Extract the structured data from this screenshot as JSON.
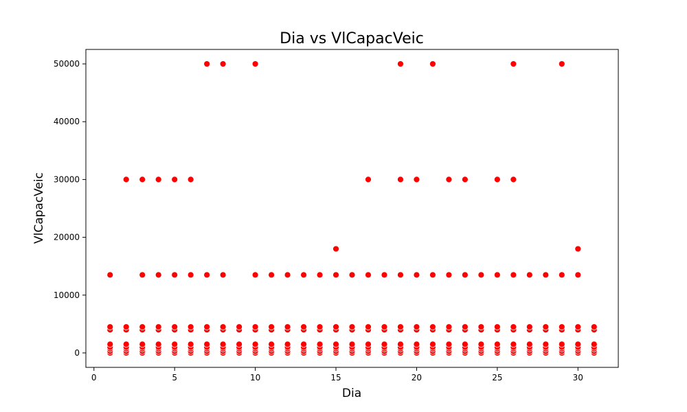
{
  "chart_data": {
    "type": "scatter",
    "title": "Dia vs VlCapacVeic",
    "xlabel": "Dia",
    "ylabel": "VlCapacVeic",
    "xlim": [
      -0.5,
      32.5
    ],
    "ylim": [
      -2500,
      52500
    ],
    "xticks": [
      0,
      5,
      10,
      15,
      20,
      25,
      30
    ],
    "yticks": [
      0,
      10000,
      20000,
      30000,
      40000,
      50000
    ],
    "xtick_labels": [
      "0",
      "5",
      "10",
      "15",
      "20",
      "25",
      "30"
    ],
    "ytick_labels": [
      "0",
      "10000",
      "20000",
      "30000",
      "40000",
      "50000"
    ],
    "grid": false,
    "marker_color": "#ff0000",
    "low_values": [
      0,
      300,
      700,
      1000,
      1500,
      4000,
      4500
    ],
    "points_high": [
      [
        1,
        13500
      ],
      [
        2,
        30000
      ],
      [
        3,
        30000
      ],
      [
        3,
        13500
      ],
      [
        4,
        30000
      ],
      [
        4,
        13500
      ],
      [
        5,
        30000
      ],
      [
        5,
        13500
      ],
      [
        6,
        30000
      ],
      [
        6,
        13500
      ],
      [
        7,
        50000
      ],
      [
        7,
        13500
      ],
      [
        8,
        50000
      ],
      [
        8,
        13500
      ],
      [
        10,
        50000
      ],
      [
        10,
        13500
      ],
      [
        11,
        13500
      ],
      [
        12,
        13500
      ],
      [
        13,
        13500
      ],
      [
        14,
        13500
      ],
      [
        15,
        18000
      ],
      [
        15,
        13500
      ],
      [
        16,
        13500
      ],
      [
        17,
        30000
      ],
      [
        17,
        13500
      ],
      [
        18,
        13500
      ],
      [
        19,
        50000
      ],
      [
        19,
        30000
      ],
      [
        19,
        13500
      ],
      [
        20,
        30000
      ],
      [
        20,
        13500
      ],
      [
        21,
        50000
      ],
      [
        21,
        13500
      ],
      [
        22,
        30000
      ],
      [
        22,
        13500
      ],
      [
        23,
        30000
      ],
      [
        23,
        13500
      ],
      [
        24,
        13500
      ],
      [
        25,
        30000
      ],
      [
        25,
        13500
      ],
      [
        26,
        50000
      ],
      [
        26,
        30000
      ],
      [
        26,
        13500
      ],
      [
        27,
        13500
      ],
      [
        28,
        13500
      ],
      [
        29,
        50000
      ],
      [
        29,
        13500
      ],
      [
        30,
        18000
      ],
      [
        30,
        13500
      ]
    ]
  }
}
